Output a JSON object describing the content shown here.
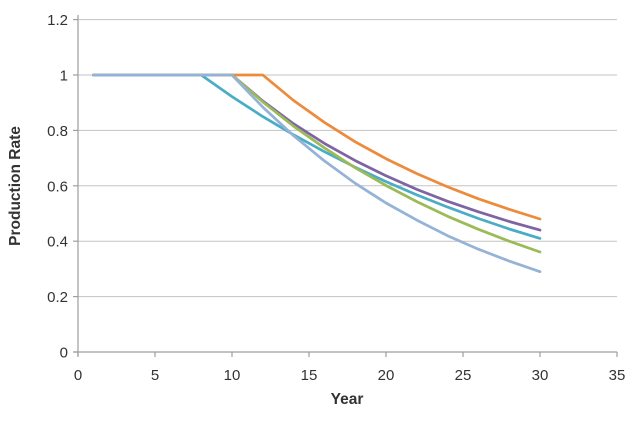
{
  "chart_data": {
    "type": "line",
    "title": "",
    "xlabel": "Year",
    "ylabel": "Production Rate",
    "xlim": [
      0,
      35
    ],
    "ylim": [
      0,
      1.2
    ],
    "x_ticks": [
      0,
      5,
      10,
      15,
      20,
      25,
      30,
      35
    ],
    "x_tick_labels": [
      "0",
      "5",
      "10",
      "15",
      "20",
      "25",
      "30",
      "35"
    ],
    "y_ticks": [
      0,
      0.2,
      0.4,
      0.6,
      0.8,
      1,
      1.2
    ],
    "y_tick_labels": [
      "0",
      "0.2",
      "0.4",
      "0.6",
      "0.8",
      "1",
      "1.2"
    ],
    "grid": "horizontal",
    "legend": "none",
    "series": [
      {
        "name": "orange-decline-after-year-12",
        "color": "#EC8B3C",
        "points": [
          [
            1,
            1
          ],
          [
            12,
            1
          ],
          [
            14,
            0.908
          ],
          [
            16,
            0.829
          ],
          [
            18,
            0.759
          ],
          [
            20,
            0.698
          ],
          [
            22,
            0.644
          ],
          [
            24,
            0.596
          ],
          [
            26,
            0.553
          ],
          [
            28,
            0.515
          ],
          [
            30,
            0.48
          ]
        ]
      },
      {
        "name": "teal-decline-after-year-8",
        "color": "#4BACC6",
        "points": [
          [
            1,
            1
          ],
          [
            8,
            1
          ],
          [
            10,
            0.922
          ],
          [
            12,
            0.85
          ],
          [
            14,
            0.784
          ],
          [
            16,
            0.723
          ],
          [
            18,
            0.667
          ],
          [
            20,
            0.615
          ],
          [
            22,
            0.567
          ],
          [
            24,
            0.523
          ],
          [
            26,
            0.482
          ],
          [
            28,
            0.444
          ],
          [
            30,
            0.41
          ]
        ]
      },
      {
        "name": "purple-decline-after-year-10",
        "color": "#8064A2",
        "points": [
          [
            1,
            1
          ],
          [
            10,
            1
          ],
          [
            12,
            0.906
          ],
          [
            14,
            0.824
          ],
          [
            16,
            0.753
          ],
          [
            18,
            0.691
          ],
          [
            20,
            0.636
          ],
          [
            22,
            0.587
          ],
          [
            24,
            0.544
          ],
          [
            26,
            0.506
          ],
          [
            28,
            0.471
          ],
          [
            30,
            0.44
          ]
        ]
      },
      {
        "name": "green-decline-after-year-10",
        "color": "#9BBB59",
        "points": [
          [
            1,
            1
          ],
          [
            10,
            1
          ],
          [
            12,
            0.903
          ],
          [
            14,
            0.815
          ],
          [
            16,
            0.737
          ],
          [
            18,
            0.665
          ],
          [
            20,
            0.601
          ],
          [
            22,
            0.543
          ],
          [
            24,
            0.49
          ],
          [
            26,
            0.443
          ],
          [
            28,
            0.4
          ],
          [
            30,
            0.361
          ]
        ]
      },
      {
        "name": "lightblue-decline-after-year-10",
        "color": "#95B3D7",
        "points": [
          [
            1,
            1
          ],
          [
            10,
            1
          ],
          [
            12,
            0.884
          ],
          [
            14,
            0.781
          ],
          [
            16,
            0.69
          ],
          [
            18,
            0.609
          ],
          [
            20,
            0.538
          ],
          [
            22,
            0.476
          ],
          [
            24,
            0.42
          ],
          [
            26,
            0.371
          ],
          [
            28,
            0.328
          ],
          [
            30,
            0.29
          ]
        ]
      }
    ]
  },
  "style": {
    "gridline_color": "#C3C3C3",
    "axis_color": "#9E9E9E",
    "text_color": "#333333",
    "line_width": 2.75
  }
}
